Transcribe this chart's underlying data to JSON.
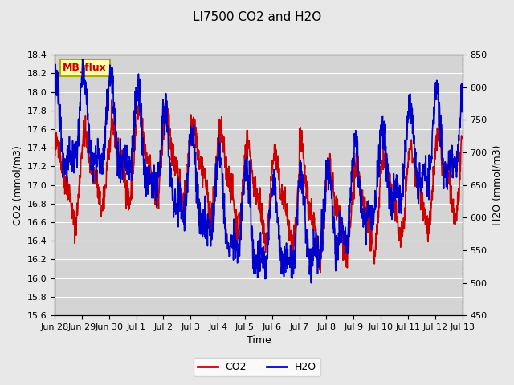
{
  "title": "LI7500 CO2 and H2O",
  "xlabel": "Time",
  "ylabel_left": "CO2 (mmol/m3)",
  "ylabel_right": "H2O (mmol/m3)",
  "co2_ylim": [
    15.6,
    18.4
  ],
  "h2o_ylim": [
    450,
    850
  ],
  "co2_color": "#cc0000",
  "h2o_color": "#0000cc",
  "line_width": 1.2,
  "background_color": "#e8e8e8",
  "plot_bg_color": "#d8d8d8",
  "watermark_text": "MB_flux",
  "watermark_bg": "#ffffaa",
  "watermark_border": "#aaaa00",
  "legend_co2": "CO2",
  "legend_h2o": "H2O",
  "xtick_labels": [
    "Jun 28",
    "Jun 29",
    "Jun 30",
    "Jul 1",
    "Jul 2",
    "Jul 3",
    "Jul 4",
    "Jul 5",
    "Jul 6",
    "Jul 7",
    "Jul 8",
    "Jul 9",
    "Jul 10",
    "Jul 11",
    "Jul 12",
    "Jul 13"
  ],
  "num_points": 1500,
  "seed": 42
}
